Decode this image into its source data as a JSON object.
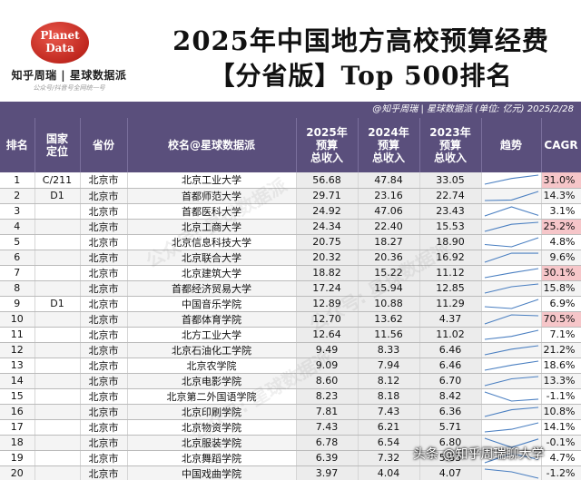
{
  "logo": {
    "line1": "Planet",
    "line2": "Data"
  },
  "brand": {
    "name": "知乎周瑞 | 星球数据派",
    "sub": "公众号/抖音号全网统一号"
  },
  "title": {
    "line1": "2025年中国地方高校预算经费",
    "line2": "【分省版】Top 500排名"
  },
  "subbar": "@知乎周瑞 | 星球数据派 (单位: 亿元) 2025/2/28",
  "columns": {
    "rank": "排名",
    "national": "国家\n定位",
    "province": "省份",
    "school": "校名@星球数据派",
    "y2025": "2025年\n预算\n总收入",
    "y2024": "2024年\n预算\n总收入",
    "y2023": "2023年\n预算\n总收入",
    "trend": "趋势",
    "cagr": "CAGR"
  },
  "rows": [
    {
      "rank": "1",
      "nat": "C/211",
      "prov": "北京市",
      "school": "北京工业大学",
      "y25": "56.68",
      "y24": "47.84",
      "y23": "33.05",
      "cagr": "31.0%",
      "hi": true
    },
    {
      "rank": "2",
      "nat": "D1",
      "prov": "北京市",
      "school": "首都师范大学",
      "y25": "29.71",
      "y24": "23.16",
      "y23": "22.74",
      "cagr": "14.3%",
      "hi": false
    },
    {
      "rank": "3",
      "nat": "",
      "prov": "北京市",
      "school": "首都医科大学",
      "y25": "24.92",
      "y24": "47.06",
      "y23": "23.43",
      "cagr": "3.1%",
      "hi": false
    },
    {
      "rank": "4",
      "nat": "",
      "prov": "北京市",
      "school": "北京工商大学",
      "y25": "24.34",
      "y24": "22.40",
      "y23": "15.53",
      "cagr": "25.2%",
      "hi": true
    },
    {
      "rank": "5",
      "nat": "",
      "prov": "北京市",
      "school": "北京信息科技大学",
      "y25": "20.75",
      "y24": "18.27",
      "y23": "18.90",
      "cagr": "4.8%",
      "hi": false
    },
    {
      "rank": "6",
      "nat": "",
      "prov": "北京市",
      "school": "北京联合大学",
      "y25": "20.32",
      "y24": "20.36",
      "y23": "16.92",
      "cagr": "9.6%",
      "hi": false
    },
    {
      "rank": "7",
      "nat": "",
      "prov": "北京市",
      "school": "北京建筑大学",
      "y25": "18.82",
      "y24": "15.22",
      "y23": "11.12",
      "cagr": "30.1%",
      "hi": true
    },
    {
      "rank": "8",
      "nat": "",
      "prov": "北京市",
      "school": "首都经济贸易大学",
      "y25": "17.24",
      "y24": "15.94",
      "y23": "12.85",
      "cagr": "15.8%",
      "hi": false
    },
    {
      "rank": "9",
      "nat": "D1",
      "prov": "北京市",
      "school": "中国音乐学院",
      "y25": "12.89",
      "y24": "10.88",
      "y23": "11.29",
      "cagr": "6.9%",
      "hi": false
    },
    {
      "rank": "10",
      "nat": "",
      "prov": "北京市",
      "school": "首都体育学院",
      "y25": "12.70",
      "y24": "13.62",
      "y23": "4.37",
      "cagr": "70.5%",
      "hi": true
    },
    {
      "rank": "11",
      "nat": "",
      "prov": "北京市",
      "school": "北方工业大学",
      "y25": "12.64",
      "y24": "11.56",
      "y23": "11.02",
      "cagr": "7.1%",
      "hi": false
    },
    {
      "rank": "12",
      "nat": "",
      "prov": "北京市",
      "school": "北京石油化工学院",
      "y25": "9.49",
      "y24": "8.33",
      "y23": "6.46",
      "cagr": "21.2%",
      "hi": false
    },
    {
      "rank": "13",
      "nat": "",
      "prov": "北京市",
      "school": "北京农学院",
      "y25": "9.09",
      "y24": "7.94",
      "y23": "6.46",
      "cagr": "18.6%",
      "hi": false
    },
    {
      "rank": "14",
      "nat": "",
      "prov": "北京市",
      "school": "北京电影学院",
      "y25": "8.60",
      "y24": "8.12",
      "y23": "6.70",
      "cagr": "13.3%",
      "hi": false
    },
    {
      "rank": "15",
      "nat": "",
      "prov": "北京市",
      "school": "北京第二外国语学院",
      "y25": "8.23",
      "y24": "8.18",
      "y23": "8.42",
      "cagr": "-1.1%",
      "hi": false
    },
    {
      "rank": "16",
      "nat": "",
      "prov": "北京市",
      "school": "北京印刷学院",
      "y25": "7.81",
      "y24": "7.43",
      "y23": "6.36",
      "cagr": "10.8%",
      "hi": false
    },
    {
      "rank": "17",
      "nat": "",
      "prov": "北京市",
      "school": "北京物资学院",
      "y25": "7.43",
      "y24": "6.21",
      "y23": "5.71",
      "cagr": "14.1%",
      "hi": false
    },
    {
      "rank": "18",
      "nat": "",
      "prov": "北京市",
      "school": "北京服装学院",
      "y25": "6.78",
      "y24": "6.54",
      "y23": "6.80",
      "cagr": "-0.1%",
      "hi": false
    },
    {
      "rank": "19",
      "nat": "",
      "prov": "北京市",
      "school": "北京舞蹈学院",
      "y25": "6.39",
      "y24": "7.32",
      "y23": "5.83",
      "cagr": "4.7%",
      "hi": false
    },
    {
      "rank": "20",
      "nat": "",
      "prov": "北京市",
      "school": "中国戏曲学院",
      "y25": "3.97",
      "y24": "4.04",
      "y23": "4.07",
      "cagr": "-1.2%",
      "hi": false
    }
  ],
  "watermark": "公众号: 星球数据派",
  "footer_credit": "头条 @知乎周瑞聊大学"
}
